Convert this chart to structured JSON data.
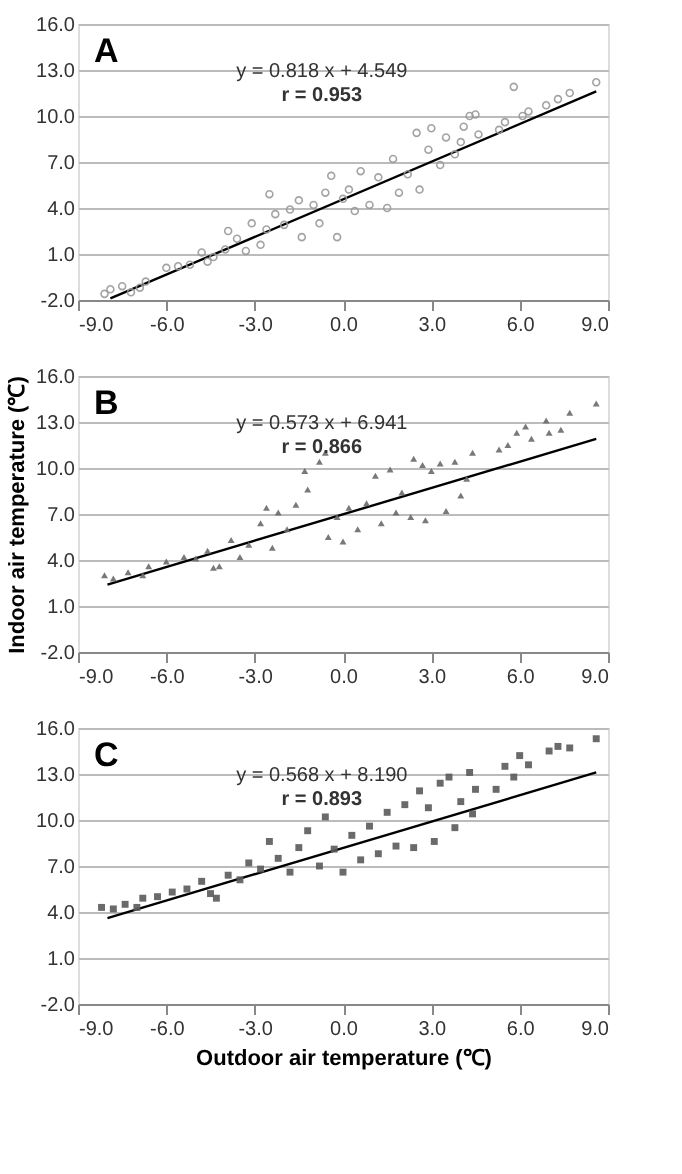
{
  "chart_data": [
    {
      "type": "scatter",
      "title": "A",
      "annotations": [
        "y = 0.818 x + 4.549",
        "r = 0.953"
      ],
      "xlim": [
        -9,
        9
      ],
      "ylim": [
        -2,
        16
      ],
      "xticks": [
        {
          "value": -9,
          "label": "-9.0"
        },
        {
          "value": -6,
          "label": "-6.0"
        },
        {
          "value": -3,
          "label": "-3.0"
        },
        {
          "value": 0,
          "label": "0.0"
        },
        {
          "value": 3,
          "label": "3.0"
        },
        {
          "value": 6,
          "label": "6.0"
        },
        {
          "value": 9,
          "label": "9.0"
        }
      ],
      "yticks": [
        {
          "value": -2,
          "label": "-2.0"
        },
        {
          "value": 1,
          "label": "1.0"
        },
        {
          "value": 4,
          "label": "4.0"
        },
        {
          "value": 7,
          "label": "7.0"
        },
        {
          "value": 10,
          "label": "10.0"
        },
        {
          "value": 13,
          "label": "13.0"
        },
        {
          "value": 16,
          "label": "16.0"
        }
      ],
      "grid": "y",
      "series": [
        {
          "marker": "circle",
          "color": "#9a9a9a",
          "x": [
            -8.1,
            -7.9,
            -7.5,
            -7.2,
            -6.9,
            -6.7,
            -6.0,
            -5.6,
            -5.2,
            -4.8,
            -4.6,
            -4.4,
            -4.0,
            -3.9,
            -3.6,
            -3.3,
            -3.1,
            -2.8,
            -2.6,
            -2.5,
            -2.3,
            -2.0,
            -1.8,
            -1.5,
            -1.4,
            -1.0,
            -0.8,
            -0.6,
            -0.4,
            -0.2,
            0.0,
            0.2,
            0.4,
            0.6,
            0.9,
            1.2,
            1.5,
            1.7,
            1.9,
            2.2,
            2.5,
            2.6,
            2.9,
            3.0,
            3.3,
            3.5,
            3.8,
            4.0,
            4.1,
            4.3,
            4.5,
            4.6,
            5.3,
            5.5,
            5.8,
            6.1,
            6.3,
            6.9,
            7.3,
            7.7,
            8.6
          ],
          "values": [
            -1.6,
            -1.3,
            -1.1,
            -1.5,
            -1.2,
            -0.8,
            0.1,
            0.2,
            0.3,
            1.1,
            0.5,
            0.8,
            1.3,
            2.5,
            2.0,
            1.2,
            3.0,
            1.6,
            2.6,
            4.9,
            3.6,
            2.9,
            3.9,
            4.5,
            2.1,
            4.2,
            3.0,
            5.0,
            6.1,
            2.1,
            4.6,
            5.2,
            3.8,
            6.4,
            4.2,
            6.0,
            4.0,
            7.2,
            5.0,
            6.2,
            8.9,
            5.2,
            7.8,
            9.2,
            6.8,
            8.6,
            7.5,
            8.3,
            9.3,
            10.0,
            10.1,
            8.8,
            9.1,
            9.6,
            11.9,
            10.0,
            10.3,
            10.7,
            11.1,
            11.5,
            12.2
          ]
        },
        {
          "type": "line",
          "marker": "none",
          "color": "#000000",
          "x": [
            -7.9,
            8.6
          ],
          "values": [
            -1.9,
            11.6
          ]
        }
      ]
    },
    {
      "type": "scatter",
      "title": "B",
      "ylabel": "Indoor air temperature (℃)",
      "annotations": [
        "y = 0.573 x + 6.941",
        "r = 0.866"
      ],
      "xlim": [
        -9,
        9
      ],
      "ylim": [
        -2,
        16
      ],
      "xticks": [
        {
          "value": -9,
          "label": "-9.0"
        },
        {
          "value": -6,
          "label": "-6.0"
        },
        {
          "value": -3,
          "label": "-3.0"
        },
        {
          "value": 0,
          "label": "0.0"
        },
        {
          "value": 3,
          "label": "3.0"
        },
        {
          "value": 6,
          "label": "6.0"
        },
        {
          "value": 9,
          "label": "9.0"
        }
      ],
      "yticks": [
        {
          "value": -2,
          "label": "-2.0"
        },
        {
          "value": 1,
          "label": "1.0"
        },
        {
          "value": 4,
          "label": "4.0"
        },
        {
          "value": 7,
          "label": "7.0"
        },
        {
          "value": 10,
          "label": "10.0"
        },
        {
          "value": 13,
          "label": "13.0"
        },
        {
          "value": 16,
          "label": "16.0"
        }
      ],
      "grid": "y",
      "series": [
        {
          "marker": "triangle",
          "color": "#6a6a6a",
          "x": [
            -8.1,
            -7.8,
            -7.3,
            -6.8,
            -6.6,
            -6.0,
            -5.4,
            -5.0,
            -4.6,
            -4.4,
            -4.2,
            -3.8,
            -3.5,
            -3.2,
            -2.8,
            -2.6,
            -2.4,
            -2.2,
            -1.9,
            -1.6,
            -1.3,
            -1.2,
            -0.8,
            -0.6,
            -0.5,
            -0.2,
            0.0,
            0.2,
            0.5,
            0.8,
            1.1,
            1.3,
            1.6,
            1.8,
            2.0,
            2.3,
            2.4,
            2.7,
            2.8,
            3.0,
            3.3,
            3.5,
            3.8,
            4.0,
            4.2,
            4.4,
            5.3,
            5.6,
            5.9,
            6.2,
            6.4,
            6.9,
            7.0,
            7.4,
            7.7,
            8.6
          ],
          "values": [
            3.0,
            2.8,
            3.2,
            3.0,
            3.6,
            3.9,
            4.2,
            4.1,
            4.6,
            3.5,
            3.6,
            5.3,
            4.2,
            5.0,
            6.4,
            7.4,
            4.8,
            7.1,
            6.0,
            7.6,
            9.8,
            8.6,
            10.4,
            11.0,
            5.5,
            6.8,
            5.2,
            7.4,
            6.0,
            7.7,
            9.5,
            6.4,
            9.9,
            7.1,
            8.4,
            6.8,
            10.6,
            10.2,
            6.6,
            9.8,
            10.3,
            7.2,
            10.4,
            8.2,
            9.3,
            11.0,
            11.2,
            11.5,
            12.3,
            12.7,
            11.9,
            13.1,
            12.3,
            12.5,
            13.6,
            14.2
          ]
        },
        {
          "type": "line",
          "marker": "none",
          "color": "#000000",
          "x": [
            -8.0,
            8.6
          ],
          "values": [
            2.4,
            11.9
          ]
        }
      ]
    },
    {
      "type": "scatter",
      "title": "C",
      "xlabel": "Outdoor air temperature (℃)",
      "annotations": [
        "y = 0.568 x + 8.190",
        "r = 0.893"
      ],
      "xlim": [
        -9,
        9
      ],
      "ylim": [
        -2,
        16
      ],
      "xticks": [
        {
          "value": -9,
          "label": "-9.0"
        },
        {
          "value": -6,
          "label": "-6.0"
        },
        {
          "value": -3,
          "label": "-3.0"
        },
        {
          "value": 0,
          "label": "0.0"
        },
        {
          "value": 3,
          "label": "3.0"
        },
        {
          "value": 6,
          "label": "6.0"
        },
        {
          "value": 9,
          "label": "9.0"
        }
      ],
      "yticks": [
        {
          "value": -2,
          "label": "-2.0"
        },
        {
          "value": 1,
          "label": "1.0"
        },
        {
          "value": 4,
          "label": "4.0"
        },
        {
          "value": 7,
          "label": "7.0"
        },
        {
          "value": 10,
          "label": "10.0"
        },
        {
          "value": 13,
          "label": "13.0"
        },
        {
          "value": 16,
          "label": "16.0"
        }
      ],
      "grid": "y",
      "series": [
        {
          "marker": "square",
          "color": "#5a5a5a",
          "x": [
            -8.2,
            -7.8,
            -7.4,
            -7.0,
            -6.8,
            -6.3,
            -5.8,
            -5.3,
            -4.8,
            -4.5,
            -4.3,
            -3.9,
            -3.5,
            -3.2,
            -2.8,
            -2.5,
            -2.2,
            -1.8,
            -1.5,
            -1.2,
            -0.8,
            -0.6,
            -0.3,
            0.0,
            0.3,
            0.6,
            0.9,
            1.2,
            1.5,
            1.8,
            2.1,
            2.4,
            2.6,
            2.9,
            3.1,
            3.3,
            3.6,
            3.8,
            4.0,
            4.3,
            4.4,
            4.5,
            5.2,
            5.5,
            5.8,
            6.0,
            6.3,
            7.0,
            7.3,
            7.7,
            8.6
          ],
          "values": [
            4.3,
            4.2,
            4.5,
            4.3,
            4.9,
            5.0,
            5.3,
            5.5,
            6.0,
            5.2,
            4.9,
            6.4,
            6.1,
            7.2,
            6.8,
            8.6,
            7.5,
            6.6,
            8.2,
            9.3,
            7.0,
            10.2,
            8.1,
            6.6,
            9.0,
            7.4,
            9.6,
            7.8,
            10.5,
            8.3,
            11.0,
            8.2,
            11.9,
            10.8,
            8.6,
            12.4,
            12.8,
            9.5,
            11.2,
            13.1,
            10.4,
            12.0,
            12.0,
            13.5,
            12.8,
            14.2,
            13.6,
            14.5,
            14.8,
            14.7,
            15.3
          ]
        },
        {
          "type": "line",
          "marker": "none",
          "color": "#000000",
          "x": [
            -8.0,
            8.6
          ],
          "values": [
            3.6,
            13.1
          ]
        }
      ]
    }
  ]
}
